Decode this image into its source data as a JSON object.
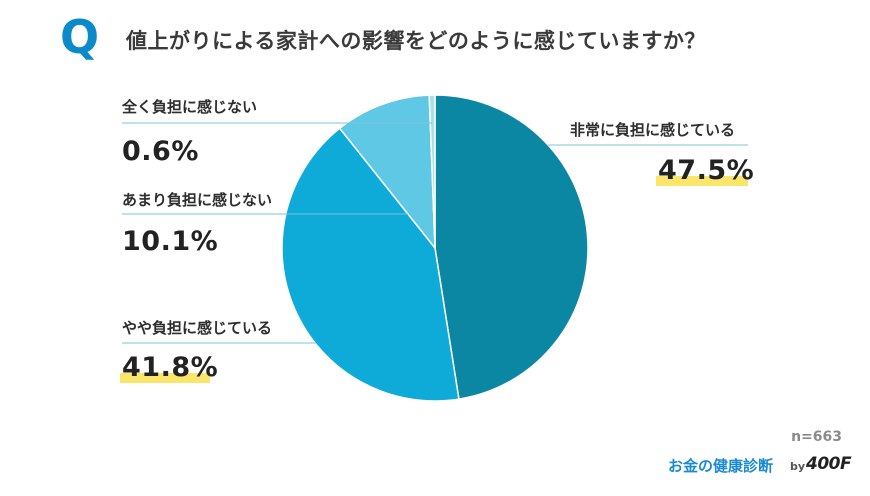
{
  "header": {
    "badge": "Q",
    "question": "値上がりによる家計への影響をどのように感じていますか？"
  },
  "chart_data": {
    "type": "pie",
    "slices": [
      {
        "label": "非常に負担に感じている",
        "value": 47.5,
        "display": "47.5%",
        "color": "#0b86a3"
      },
      {
        "label": "やや負担に感じている",
        "value": 41.8,
        "display": "41.8%",
        "color": "#0eaad8"
      },
      {
        "label": "あまり負担に感じない",
        "value": 10.1,
        "display": "10.1%",
        "color": "#5fc8e4"
      },
      {
        "label": "全く負担に感じない",
        "value": 0.6,
        "display": "0.6%",
        "color": "#a9dff0"
      }
    ],
    "start": "12 o'clock",
    "direction": "clockwise"
  },
  "footer": {
    "sample": "n=663",
    "brand": "お金の健康診断",
    "by": "by",
    "logo": "400F"
  }
}
